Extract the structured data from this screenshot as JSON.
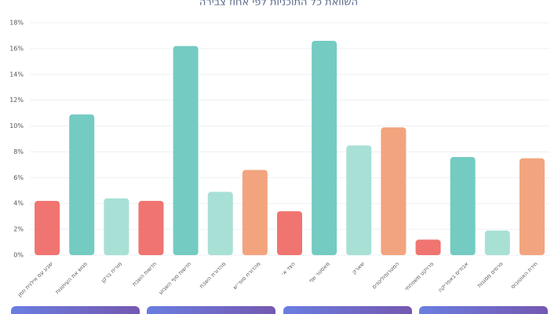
{
  "chart_data": {
    "type": "bar",
    "title": "השוואת כל התוכניות לפי אחוז צבירה",
    "categories": [
      "שבע עם אילנית וזמן",
      "פגוש את העיתונות",
      "מורית ברקן",
      "חדשות השבת",
      "חדשות סוף השבוע",
      "מהדורת השבת",
      "מהדורת סופ״ש",
      "הצד א׳",
      "מאסטר שף",
      "שארק",
      "המטרופוליטנים",
      "פרויקט משפחתי",
      "אבודים באפריקה",
      "פרסים מסגנות",
      "חידת האוטובוס"
    ],
    "values": [
      4.2,
      10.9,
      4.4,
      4.2,
      16.2,
      4.9,
      6.6,
      3.4,
      16.6,
      8.5,
      9.9,
      1.2,
      7.6,
      1.9,
      7.5
    ],
    "colors": [
      "#f07470",
      "#74cbc2",
      "#a8e0d6",
      "#f07470",
      "#74cbc2",
      "#a8e0d6",
      "#f2a47e",
      "#f07470",
      "#74cbc2",
      "#a8e0d6",
      "#f2a47e",
      "#f07470",
      "#74cbc2",
      "#a8e0d6",
      "#f2a47e"
    ],
    "ylim": [
      0,
      18
    ],
    "yticks": [
      {
        "value": 0,
        "label": "0%"
      },
      {
        "value": 2,
        "label": "2%"
      },
      {
        "value": 4,
        "label": "4%"
      },
      {
        "value": 6,
        "label": "6%"
      },
      {
        "value": 8,
        "label": "8%"
      },
      {
        "value": 10,
        "label": "10%"
      },
      {
        "value": 12,
        "label": "12%"
      },
      {
        "value": 14,
        "label": "14%"
      },
      {
        "value": 16,
        "label": "16%"
      },
      {
        "value": 18,
        "label": "18%"
      }
    ],
    "grid": true
  }
}
